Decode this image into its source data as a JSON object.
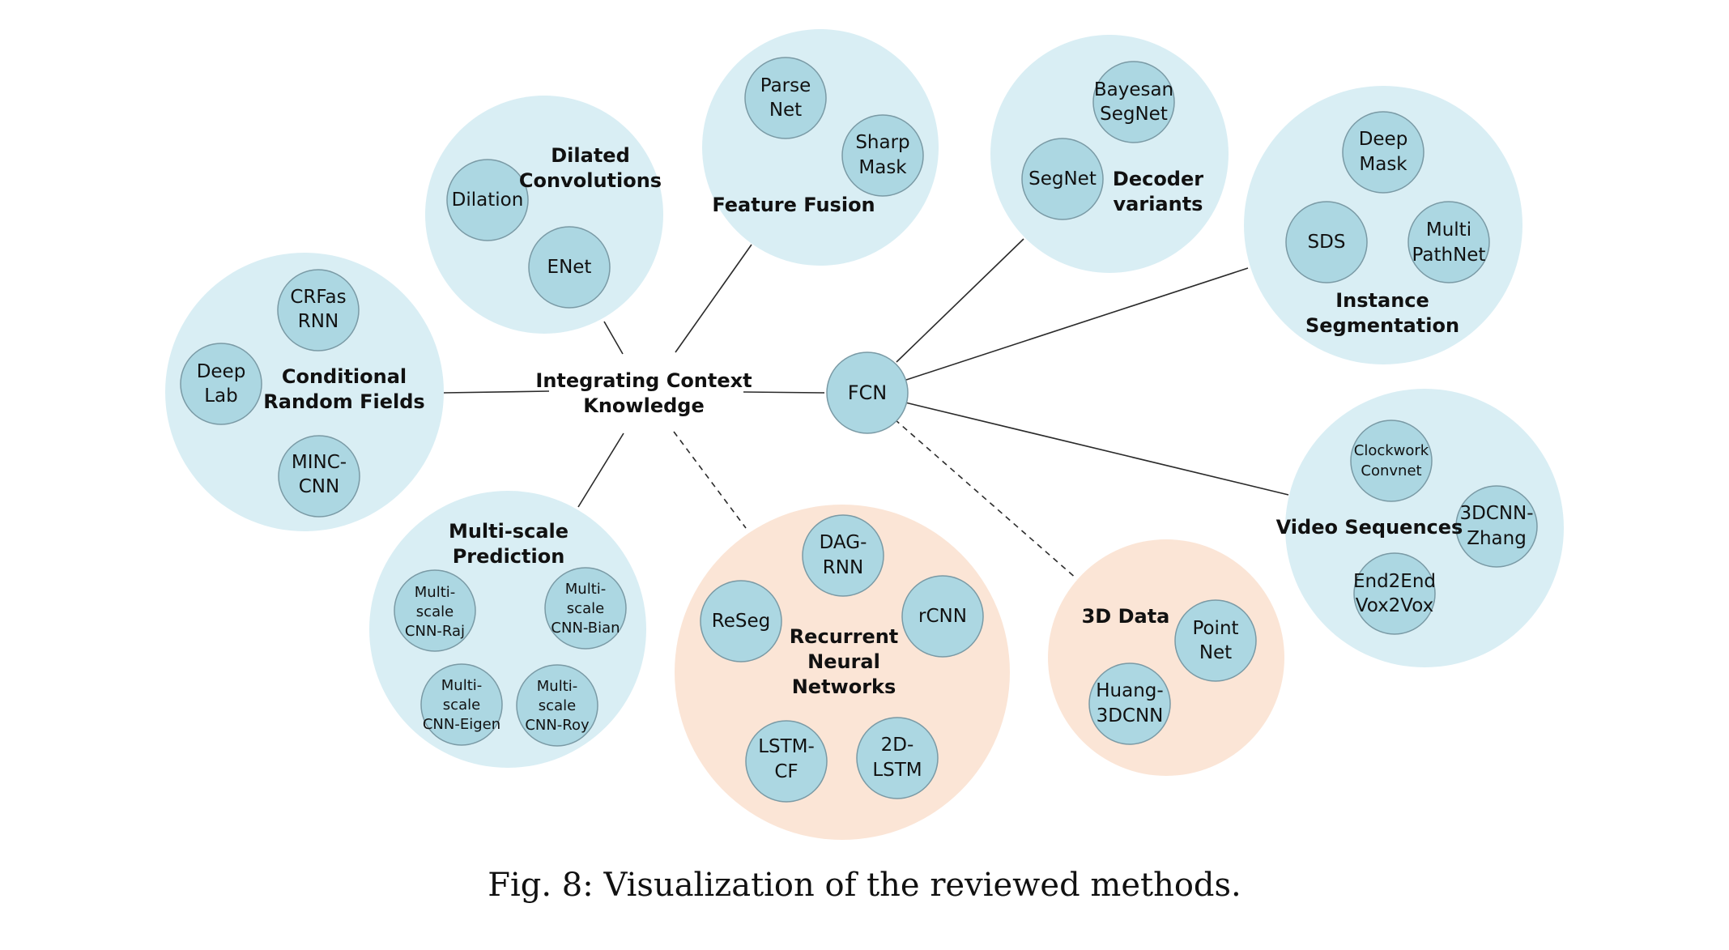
{
  "hubs": {
    "context": [
      "Integrating Context",
      "Knowledge"
    ],
    "fcn": "FCN"
  },
  "groups": {
    "crf": {
      "label": [
        "Conditional",
        "Random Fields"
      ],
      "nodes": [
        [
          "CRFas",
          "RNN"
        ],
        [
          "Deep",
          "Lab"
        ],
        [
          "MINC-",
          "CNN"
        ]
      ]
    },
    "dilated": {
      "label": [
        "Dilated",
        "Convolutions"
      ],
      "nodes": [
        [
          "Dilation"
        ],
        [
          "ENet"
        ]
      ]
    },
    "fusion": {
      "label": [
        "Feature Fusion"
      ],
      "nodes": [
        [
          "Parse",
          "Net"
        ],
        [
          "Sharp",
          "Mask"
        ]
      ]
    },
    "multiscale": {
      "label": [
        "Multi-scale",
        "Prediction"
      ],
      "nodes": [
        [
          "Multi-",
          "scale",
          "CNN-Raj"
        ],
        [
          "Multi-",
          "scale",
          "CNN-Bian"
        ],
        [
          "Multi-",
          "scale",
          "CNN-Eigen"
        ],
        [
          "Multi-",
          "scale",
          "CNN-Roy"
        ]
      ]
    },
    "rnn": {
      "label": [
        "Recurrent",
        "Neural",
        "Networks"
      ],
      "nodes": [
        [
          "DAG-",
          "RNN"
        ],
        [
          "ReSeg"
        ],
        [
          "rCNN"
        ],
        [
          "LSTM-",
          "CF"
        ],
        [
          "2D-",
          "LSTM"
        ]
      ]
    },
    "decoder": {
      "label": [
        "Decoder",
        "variants"
      ],
      "nodes": [
        [
          "Bayesan",
          "SegNet"
        ],
        [
          "SegNet"
        ]
      ]
    },
    "instance": {
      "label": [
        "Instance",
        "Segmentation"
      ],
      "nodes": [
        [
          "Deep",
          "Mask"
        ],
        [
          "SDS"
        ],
        [
          "Multi",
          "PathNet"
        ]
      ]
    },
    "video": {
      "label": [
        "Video Sequences"
      ],
      "nodes": [
        [
          "Clockwork",
          "Convnet"
        ],
        [
          "3DCNN-",
          "Zhang"
        ],
        [
          "End2End",
          "Vox2Vox"
        ]
      ]
    },
    "data3d": {
      "label": [
        "3D Data"
      ],
      "nodes": [
        [
          "Point",
          "Net"
        ],
        [
          "Huang-",
          "3DCNN"
        ]
      ]
    }
  },
  "colors": {
    "group_blue": "#d9eef4",
    "group_orange": "#fbe5d6",
    "node": "#acd7e2"
  },
  "caption": "Fig. 8: Visualization of the reviewed methods."
}
